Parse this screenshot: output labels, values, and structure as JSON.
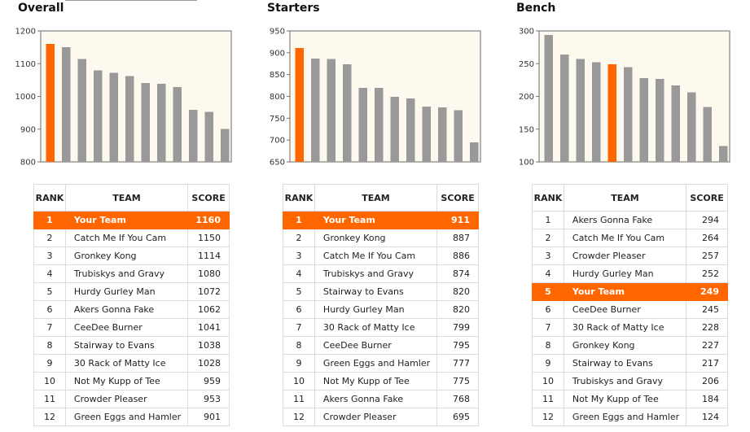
{
  "panels": [
    {
      "title": "Overall",
      "table_headers": {
        "rank": "RANK",
        "team": "TEAM",
        "score": "SCORE"
      },
      "rows": [
        {
          "rank": "1",
          "team": "Your Team",
          "score": "1160",
          "highlight": true
        },
        {
          "rank": "2",
          "team": "Catch Me If You Cam",
          "score": "1150"
        },
        {
          "rank": "3",
          "team": "Gronkey Kong",
          "score": "1114"
        },
        {
          "rank": "4",
          "team": "Trubiskys and Gravy",
          "score": "1080"
        },
        {
          "rank": "5",
          "team": "Hurdy Gurley Man",
          "score": "1072"
        },
        {
          "rank": "6",
          "team": "Akers Gonna Fake",
          "score": "1062"
        },
        {
          "rank": "7",
          "team": "CeeDee Burner",
          "score": "1041"
        },
        {
          "rank": "8",
          "team": "Stairway to Evans",
          "score": "1038"
        },
        {
          "rank": "9",
          "team": "30 Rack of Matty Ice",
          "score": "1028"
        },
        {
          "rank": "10",
          "team": "Not My Kupp of Tee",
          "score": "959"
        },
        {
          "rank": "11",
          "team": "Crowder Pleaser",
          "score": "953"
        },
        {
          "rank": "12",
          "team": "Green Eggs and Hamler",
          "score": "901"
        }
      ]
    },
    {
      "title": "Starters",
      "table_headers": {
        "rank": "RANK",
        "team": "TEAM",
        "score": "SCORE"
      },
      "rows": [
        {
          "rank": "1",
          "team": "Your Team",
          "score": "911",
          "highlight": true
        },
        {
          "rank": "2",
          "team": "Gronkey Kong",
          "score": "887"
        },
        {
          "rank": "3",
          "team": "Catch Me If You Cam",
          "score": "886"
        },
        {
          "rank": "4",
          "team": "Trubiskys and Gravy",
          "score": "874"
        },
        {
          "rank": "5",
          "team": "Stairway to Evans",
          "score": "820"
        },
        {
          "rank": "6",
          "team": "Hurdy Gurley Man",
          "score": "820"
        },
        {
          "rank": "7",
          "team": "30 Rack of Matty Ice",
          "score": "799"
        },
        {
          "rank": "8",
          "team": "CeeDee Burner",
          "score": "795"
        },
        {
          "rank": "9",
          "team": "Green Eggs and Hamler",
          "score": "777"
        },
        {
          "rank": "10",
          "team": "Not My Kupp of Tee",
          "score": "775"
        },
        {
          "rank": "11",
          "team": "Akers Gonna Fake",
          "score": "768"
        },
        {
          "rank": "12",
          "team": "Crowder Pleaser",
          "score": "695"
        }
      ]
    },
    {
      "title": "Bench",
      "table_headers": {
        "rank": "RANK",
        "team": "TEAM",
        "score": "SCORE"
      },
      "rows": [
        {
          "rank": "1",
          "team": "Akers Gonna Fake",
          "score": "294"
        },
        {
          "rank": "2",
          "team": "Catch Me If You Cam",
          "score": "264"
        },
        {
          "rank": "3",
          "team": "Crowder Pleaser",
          "score": "257"
        },
        {
          "rank": "4",
          "team": "Hurdy Gurley Man",
          "score": "252"
        },
        {
          "rank": "5",
          "team": "Your Team",
          "score": "249",
          "highlight": true
        },
        {
          "rank": "6",
          "team": "CeeDee Burner",
          "score": "245"
        },
        {
          "rank": "7",
          "team": "30 Rack of Matty Ice",
          "score": "228"
        },
        {
          "rank": "8",
          "team": "Gronkey Kong",
          "score": "227"
        },
        {
          "rank": "9",
          "team": "Stairway to Evans",
          "score": "217"
        },
        {
          "rank": "10",
          "team": "Trubiskys and Gravy",
          "score": "206"
        },
        {
          "rank": "11",
          "team": "Not My Kupp of Tee",
          "score": "184"
        },
        {
          "rank": "12",
          "team": "Green Eggs and Hamler",
          "score": "124"
        }
      ]
    }
  ],
  "colors": {
    "highlight": "#ff6600",
    "bar": "#999999",
    "plot_background": "#fdf9ee",
    "frame": "#9a9a9a"
  },
  "chart_data": [
    {
      "type": "bar",
      "title": "Overall",
      "categories": [
        "Your Team",
        "Catch Me If You Cam",
        "Gronkey Kong",
        "Trubiskys and Gravy",
        "Hurdy Gurley Man",
        "Akers Gonna Fake",
        "CeeDee Burner",
        "Stairway to Evans",
        "30 Rack of Matty Ice",
        "Not My Kupp of Tee",
        "Crowder Pleaser",
        "Green Eggs and Hamler"
      ],
      "values": [
        1160,
        1150,
        1114,
        1080,
        1072,
        1062,
        1041,
        1038,
        1028,
        959,
        953,
        901
      ],
      "highlight_index": 0,
      "ylim": [
        800,
        1200
      ],
      "yticks": [
        800,
        900,
        1000,
        1100,
        1200
      ],
      "xlabel": "",
      "ylabel": "",
      "grid": false
    },
    {
      "type": "bar",
      "title": "Starters",
      "categories": [
        "Your Team",
        "Gronkey Kong",
        "Catch Me If You Cam",
        "Trubiskys and Gravy",
        "Stairway to Evans",
        "Hurdy Gurley Man",
        "30 Rack of Matty Ice",
        "CeeDee Burner",
        "Green Eggs and Hamler",
        "Not My Kupp of Tee",
        "Akers Gonna Fake",
        "Crowder Pleaser"
      ],
      "values": [
        911,
        887,
        886,
        874,
        820,
        820,
        799,
        795,
        777,
        775,
        768,
        695
      ],
      "highlight_index": 0,
      "ylim": [
        650,
        950
      ],
      "yticks": [
        650,
        700,
        750,
        800,
        850,
        900,
        950
      ],
      "xlabel": "",
      "ylabel": "",
      "grid": false
    },
    {
      "type": "bar",
      "title": "Bench",
      "categories": [
        "Akers Gonna Fake",
        "Catch Me If You Cam",
        "Crowder Pleaser",
        "Hurdy Gurley Man",
        "Your Team",
        "CeeDee Burner",
        "30 Rack of Matty Ice",
        "Gronkey Kong",
        "Stairway to Evans",
        "Trubiskys and Gravy",
        "Not My Kupp of Tee",
        "Green Eggs and Hamler"
      ],
      "values": [
        294,
        264,
        257,
        252,
        249,
        245,
        228,
        227,
        217,
        206,
        184,
        124
      ],
      "highlight_index": 4,
      "ylim": [
        100,
        300
      ],
      "yticks": [
        100,
        150,
        200,
        250,
        300
      ],
      "xlabel": "",
      "ylabel": "",
      "grid": false
    }
  ]
}
